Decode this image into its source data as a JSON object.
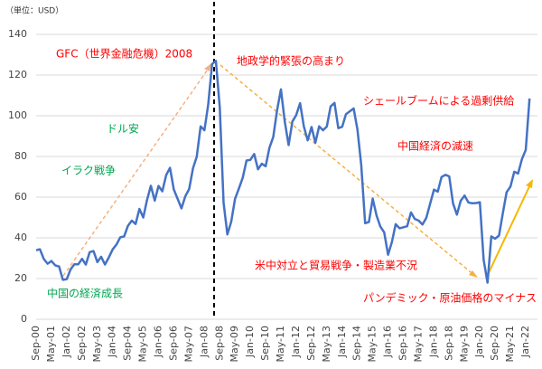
{
  "chart_data": {
    "type": "line",
    "unit_note": "（単位：USD）",
    "categories": [
      "Sep-00",
      null,
      null,
      null,
      "May-01",
      null,
      null,
      null,
      "Jan-02",
      null,
      null,
      null,
      "Sep-02",
      null,
      null,
      null,
      "May-03",
      null,
      null,
      null,
      "Jan-04",
      null,
      null,
      null,
      "Sep-04",
      null,
      null,
      null,
      "May-05",
      null,
      null,
      null,
      "Jan-06",
      null,
      null,
      null,
      "Sep-06",
      null,
      null,
      null,
      "May-07",
      null,
      null,
      null,
      "Jan-08",
      null,
      null,
      null,
      "Sep-08",
      null,
      null,
      null,
      "May-09",
      null,
      null,
      null,
      "Jan-10",
      null,
      null,
      null,
      "Sep-10",
      null,
      null,
      null,
      "May-11",
      null,
      null,
      null,
      "Jan-12",
      null,
      null,
      null,
      "Sep-12",
      null,
      null,
      null,
      "May-13",
      null,
      null,
      null,
      "Jan-14",
      null,
      null,
      null,
      "Sep-14",
      null,
      null,
      null,
      "May-15",
      null,
      null,
      null,
      "Jan-16",
      null,
      null,
      null,
      "Sep-16",
      null,
      null,
      null,
      "May-17",
      null,
      null,
      null,
      "Jan-18",
      null,
      null,
      null,
      "Sep-18",
      null,
      null,
      null,
      "May-19",
      null,
      null,
      null,
      "Jan-20",
      null,
      null,
      null,
      "Sep-20",
      null,
      null,
      null,
      "May-21",
      null,
      null,
      null,
      "Jan-22",
      null
    ],
    "series": [
      {
        "color": "#4472c4",
        "values": [
          33.9,
          34.4,
          29.6,
          27.3,
          28.6,
          26.5,
          25.9,
          19.4,
          19.7,
          24.5,
          27.0,
          27.0,
          29.7,
          26.9,
          33.0,
          33.5,
          28.1,
          30.7,
          26.9,
          30.4,
          34.3,
          36.7,
          40.3,
          40.7,
          45.9,
          48.5,
          46.8,
          54.2,
          50.0,
          58.7,
          65.6,
          58.3,
          65.5,
          62.9,
          70.9,
          74.4,
          63.8,
          59.1,
          54.5,
          60.4,
          64.0,
          74.1,
          79.9,
          94.8,
          92.9,
          105.5,
          125.4,
          127.0,
          104.0,
          57.3,
          41.7,
          48.0,
          59.2,
          64.2,
          69.5,
          78.0,
          78.3,
          81.2,
          73.7,
          76.4,
          75.2,
          84.3,
          89.6,
          102.9,
          113.0,
          97.3,
          85.6,
          97.2,
          100.3,
          106.2,
          94.7,
          87.9,
          94.5,
          86.7,
          94.8,
          92.9,
          94.7,
          104.6,
          106.3,
          93.9,
          94.6,
          100.8,
          102.2,
          103.6,
          93.2,
          75.8,
          47.2,
          47.8,
          59.3,
          50.9,
          45.5,
          42.7,
          31.7,
          37.9,
          46.7,
          44.7,
          45.2,
          45.7,
          52.5,
          49.3,
          48.5,
          46.6,
          49.8,
          56.7,
          63.7,
          62.7,
          69.9,
          71.0,
          70.2,
          57.0,
          51.4,
          58.2,
          60.8,
          57.4,
          57.0,
          57.1,
          57.5,
          29.2,
          18.0,
          40.7,
          39.6,
          41.1,
          52.0,
          62.4,
          65.2,
          72.5,
          71.6,
          78.7,
          83.2,
          108.5
        ]
      }
    ],
    "ylim": [
      0,
      140
    ],
    "yticks": [
      0,
      20,
      40,
      60,
      80,
      100,
      120,
      140
    ],
    "grid": true,
    "annotations": [
      {
        "text": "GFC（世界金融危機）2008",
        "color": "#ff0000"
      },
      {
        "text": "地政学的緊張の高まり",
        "color": "#ff0000"
      },
      {
        "text": "シェールブームによる過剰供給",
        "color": "#ff0000"
      },
      {
        "text": "ドル安",
        "color": "#00a651"
      },
      {
        "text": "中国経済の減速",
        "color": "#ff0000"
      },
      {
        "text": "イラク戦争",
        "color": "#00a651"
      },
      {
        "text": "米中対立と貿易戦争・製造業不況",
        "color": "#ff0000"
      },
      {
        "text": "中国の経済成長",
        "color": "#00a651"
      },
      {
        "text": "パンデミック・原油価格のマイナス",
        "color": "#ff0000"
      }
    ]
  }
}
